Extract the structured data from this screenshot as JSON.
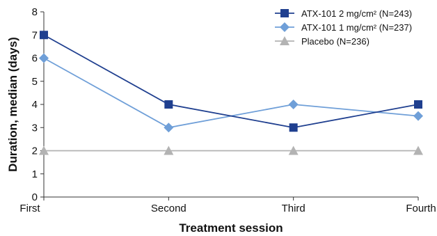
{
  "chart_data": {
    "type": "line",
    "title": "",
    "xlabel": "Treatment session",
    "ylabel": "Duration, median (days)",
    "categories": [
      "First",
      "Second",
      "Third",
      "Fourth"
    ],
    "ylim": [
      0,
      8
    ],
    "yticks": [
      "0",
      "1",
      "2",
      "3",
      "4",
      "5",
      "6",
      "7",
      "8"
    ],
    "grid": false,
    "legend_position": "top-right",
    "series": [
      {
        "name": "ATX-101 2 mg/cm² (N=243)",
        "values": [
          7,
          4,
          3,
          4
        ],
        "color": "#1f3f8f",
        "marker": "square"
      },
      {
        "name": "ATX-101 1 mg/cm² (N=237)",
        "values": [
          6,
          3,
          4,
          3.5
        ],
        "color": "#6f9fd8",
        "marker": "diamond"
      },
      {
        "name": "Placebo (N=236)",
        "values": [
          2,
          2,
          2,
          2
        ],
        "color": "#b3b3b3",
        "marker": "triangle"
      }
    ]
  }
}
